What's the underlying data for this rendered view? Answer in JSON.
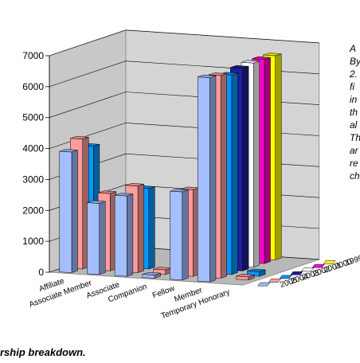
{
  "chart_data": {
    "type": "bar",
    "subtype": "3d-clustered-column",
    "categories": [
      "Affiliate",
      "Associate Member",
      "Associate",
      "Companion",
      "Fellow",
      "Member",
      "Temporary Honorary"
    ],
    "series": [
      {
        "name": "1999",
        "color": "#FFFF00",
        "values": [
          0,
          0,
          0,
          0,
          0,
          6600,
          0
        ]
      },
      {
        "name": "2000",
        "color": "#FF00CC",
        "values": [
          0,
          0,
          0,
          0,
          0,
          6600,
          0
        ]
      },
      {
        "name": "2001",
        "color": "#FFFFFF",
        "values": [
          0,
          0,
          0,
          0,
          0,
          6600,
          0
        ]
      },
      {
        "name": "2002",
        "color": "#1F1F99",
        "values": [
          0,
          0,
          0,
          0,
          0,
          6550,
          0
        ]
      },
      {
        "name": "2003",
        "color": "#0099FF",
        "values": [
          3850,
          0,
          2600,
          0,
          0,
          6450,
          150
        ]
      },
      {
        "name": "2004",
        "color": "#FF9C9C",
        "values": [
          4200,
          2500,
          2800,
          150,
          2800,
          6550,
          100
        ]
      },
      {
        "name": "2005",
        "color": "#A3BFFF",
        "values": [
          3900,
          2300,
          2600,
          100,
          2850,
          6600,
          0
        ]
      }
    ],
    "y_ticks": [
      0,
      1000,
      2000,
      3000,
      4000,
      5000,
      6000,
      7000
    ],
    "ylim": [
      0,
      7000
    ],
    "grid": true,
    "legend_position": "right-depth-axis"
  },
  "side_text": [
    "A",
    "By",
    "2.",
    "fi",
    "in",
    "th",
    "al",
    "Th",
    "ar",
    "re",
    "ch"
  ],
  "caption": "rship breakdown."
}
